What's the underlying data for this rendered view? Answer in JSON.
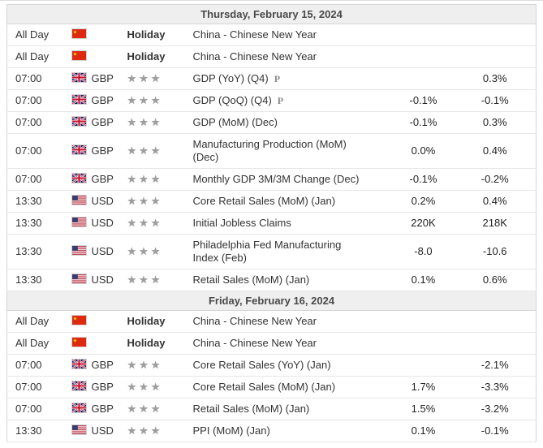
{
  "calendar": {
    "days": [
      {
        "date_label": "Thursday, February 15, 2024",
        "events": [
          {
            "time": "All Day",
            "flag": "china-flag",
            "holiday": "Holiday",
            "event": "China - Chinese New Year"
          },
          {
            "time": "All Day",
            "flag": "china-flag",
            "holiday": "Holiday",
            "event": "China - Chinese New Year"
          },
          {
            "time": "07:00",
            "flag": "uk-flag",
            "currency": "GBP",
            "stars": 3,
            "event": "GDP (YoY) (Q4)",
            "preliminary": true,
            "actual": "",
            "forecast": "",
            "previous": "0.3%"
          },
          {
            "time": "07:00",
            "flag": "uk-flag",
            "currency": "GBP",
            "stars": 3,
            "event": "GDP (QoQ) (Q4)",
            "preliminary": true,
            "actual": "",
            "forecast": "-0.1%",
            "previous": "-0.1%"
          },
          {
            "time": "07:00",
            "flag": "uk-flag",
            "currency": "GBP",
            "stars": 3,
            "event": "GDP (MoM) (Dec)",
            "actual": "",
            "forecast": "-0.1%",
            "previous": "0.3%"
          },
          {
            "time": "07:00",
            "flag": "uk-flag",
            "currency": "GBP",
            "stars": 3,
            "event": "Manufacturing Production (MoM) (Dec)",
            "actual": "",
            "forecast": "0.0%",
            "previous": "0.4%"
          },
          {
            "time": "07:00",
            "flag": "uk-flag",
            "currency": "GBP",
            "stars": 3,
            "event": "Monthly GDP 3M/3M Change (Dec)",
            "actual": "",
            "forecast": "-0.1%",
            "previous": "-0.2%"
          },
          {
            "time": "13:30",
            "flag": "us-flag",
            "currency": "USD",
            "stars": 3,
            "event": "Core Retail Sales (MoM) (Jan)",
            "actual": "",
            "forecast": "0.2%",
            "previous": "0.4%"
          },
          {
            "time": "13:30",
            "flag": "us-flag",
            "currency": "USD",
            "stars": 3,
            "event": "Initial Jobless Claims",
            "actual": "",
            "forecast": "220K",
            "previous": "218K"
          },
          {
            "time": "13:30",
            "flag": "us-flag",
            "currency": "USD",
            "stars": 3,
            "event": "Philadelphia Fed Manufacturing Index (Feb)",
            "actual": "",
            "forecast": "-8.0",
            "previous": "-10.6"
          },
          {
            "time": "13:30",
            "flag": "us-flag",
            "currency": "USD",
            "stars": 3,
            "event": "Retail Sales (MoM) (Jan)",
            "actual": "",
            "forecast": "0.1%",
            "previous": "0.6%"
          }
        ]
      },
      {
        "date_label": "Friday, February 16, 2024",
        "events": [
          {
            "time": "All Day",
            "flag": "china-flag",
            "holiday": "Holiday",
            "event": "China - Chinese New Year"
          },
          {
            "time": "All Day",
            "flag": "china-flag",
            "holiday": "Holiday",
            "event": "China - Chinese New Year"
          },
          {
            "time": "07:00",
            "flag": "uk-flag",
            "currency": "GBP",
            "stars": 3,
            "event": "Core Retail Sales (YoY) (Jan)",
            "actual": "",
            "forecast": "",
            "previous": "-2.1%"
          },
          {
            "time": "07:00",
            "flag": "uk-flag",
            "currency": "GBP",
            "stars": 3,
            "event": "Core Retail Sales (MoM) (Jan)",
            "actual": "",
            "forecast": "1.7%",
            "previous": "-3.3%"
          },
          {
            "time": "07:00",
            "flag": "uk-flag",
            "currency": "GBP",
            "stars": 3,
            "event": "Retail Sales (MoM) (Jan)",
            "actual": "",
            "forecast": "1.5%",
            "previous": "-3.2%"
          },
          {
            "time": "13:30",
            "flag": "us-flag",
            "currency": "USD",
            "stars": 3,
            "event": "PPI (MoM) (Jan)",
            "actual": "",
            "forecast": "0.1%",
            "previous": "-0.1%"
          }
        ]
      }
    ],
    "icons": {
      "preliminary": "P",
      "importance_star": "★"
    },
    "colors": {
      "day_header_bg": "#efefef",
      "table_border": "#d4d4d4",
      "row_border": "#e6e6e6",
      "star": "#9e9e9e",
      "text": "#333333",
      "china_flag_red": "#de2910",
      "uk_flag_blue": "#012169",
      "us_flag_red": "#b22234"
    }
  }
}
